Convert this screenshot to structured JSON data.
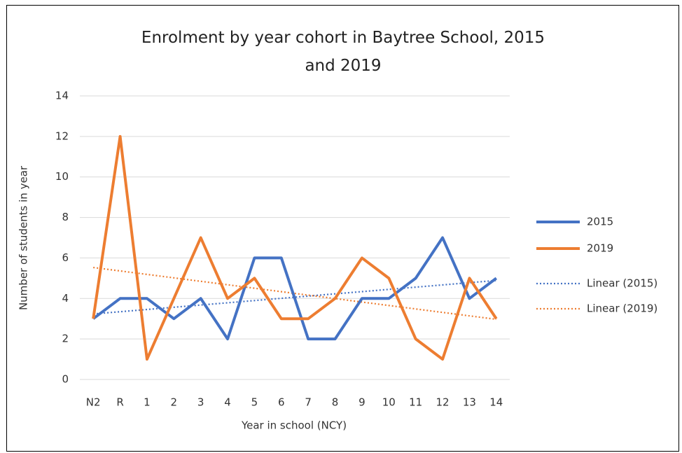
{
  "chart_data": {
    "type": "line",
    "title": "Enrolment by year cohort in Baytree School, 2015 and 2019",
    "x_label": "Year  in school (NCY)",
    "y_label": "Number of students in year",
    "categories": [
      "N2",
      "R",
      "1",
      "2",
      "3",
      "4",
      "5",
      "6",
      "7",
      "8",
      "9",
      "10",
      "11",
      "12",
      "13",
      "14"
    ],
    "series": [
      {
        "name": "2015",
        "color": "#4472c4",
        "values": [
          3,
          4,
          4,
          3,
          4,
          2,
          6,
          6,
          2,
          2,
          4,
          4,
          5,
          7,
          4,
          5
        ]
      },
      {
        "name": "2019",
        "color": "#ed7d31",
        "values": [
          3,
          12,
          1,
          4,
          7,
          4,
          5,
          3,
          3,
          4,
          6,
          5,
          2,
          1,
          5,
          3
        ]
      }
    ],
    "trendlines": [
      {
        "name": "Linear (2015)",
        "of": "2015",
        "color": "#4472c4",
        "style": "dotted"
      },
      {
        "name": "Linear (2019)",
        "of": "2019",
        "color": "#ed7d31",
        "style": "dotted"
      }
    ],
    "ylim": [
      0,
      14
    ],
    "yticks": [
      0,
      2,
      4,
      6,
      8,
      10,
      12,
      14
    ],
    "grid": true,
    "legend": "right"
  }
}
